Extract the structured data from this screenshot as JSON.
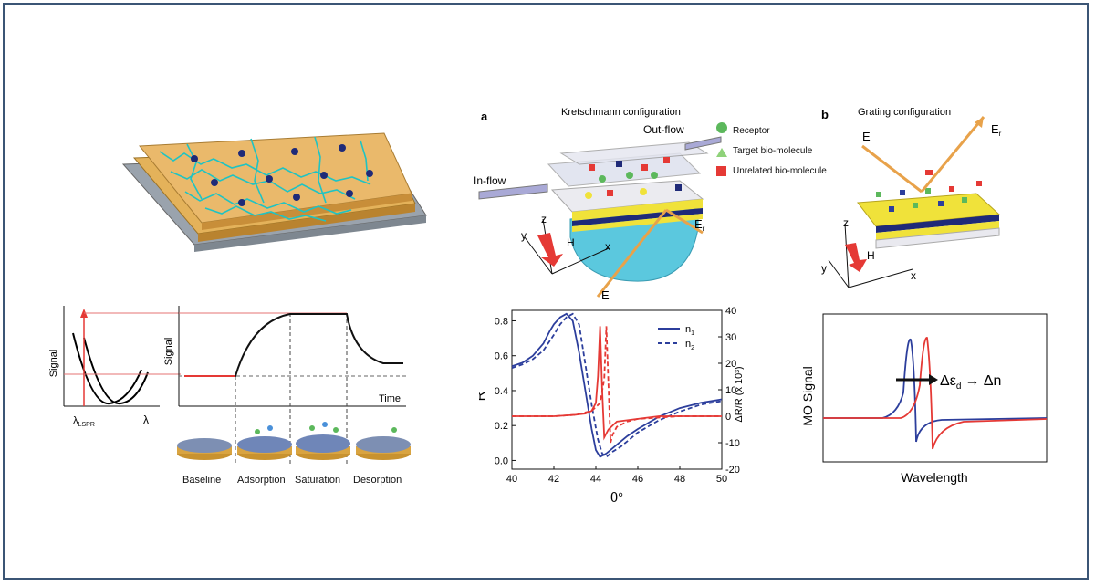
{
  "colors": {
    "frame": "#3b5575",
    "gold": "#d9a441",
    "red": "#e53935",
    "blue": "#2c3e9c",
    "prism": "#5bc8de",
    "yellow": "#f0e23a",
    "navy": "#1f2a78"
  },
  "lspr": {
    "signal_left": "Signal",
    "lambda_lspr": "λ",
    "lambda_sub": "LSPR",
    "lambda_axis": "λ",
    "signal_mid": "Signal",
    "time": "Time",
    "stages": [
      "Baseline",
      "Adsorption",
      "Saturation",
      "Desorption"
    ]
  },
  "kretschmann": {
    "panel": "a",
    "title": "Kretschmann configuration",
    "outflow": "Out-flow",
    "inflow": "In-flow",
    "legend": [
      "Receptor",
      "Target bio-molecule",
      "Unrelated bio-molecule"
    ],
    "ax_z": "z",
    "ax_y": "y",
    "ax_x": "x",
    "h": "H",
    "er": "E",
    "er_sub": "r",
    "ei": "E",
    "ei_sub": "i"
  },
  "grating": {
    "panel": "b",
    "title": "Grating configuration",
    "ei": "E",
    "ei_sub": "i",
    "er": "E",
    "er_sub": "r",
    "ax_z": "z",
    "ax_y": "y",
    "ax_x": "x",
    "h": "H"
  },
  "mo": {
    "ylabel": "MO Signal",
    "xlabel": "Wavelength",
    "annot": "Δε",
    "annot_sub": "d",
    "annot_tail": "→ Δn"
  },
  "chart_data": [
    {
      "type": "line",
      "xlabel": "θ°",
      "ylabel": "R",
      "ylabel_right": "ΔR/R (x 10³)",
      "xlim": [
        40,
        50
      ],
      "ylim": [
        -0.05,
        0.86
      ],
      "ylim_right": [
        -20,
        40
      ],
      "xticks": [
        40,
        42,
        44,
        46,
        48,
        50
      ],
      "yticks": [
        0.0,
        0.2,
        0.4,
        0.6,
        0.8
      ],
      "yticks_right": [
        -20,
        -10,
        0,
        10,
        20,
        30,
        40
      ],
      "legend": [
        "n",
        "n"
      ],
      "legend_sub": [
        "1",
        "2"
      ],
      "series": [
        {
          "name": "n1",
          "style": "solid",
          "color": "#2c3e9c",
          "x": [
            40,
            40.5,
            41,
            41.5,
            41.8,
            42,
            42.3,
            42.6,
            42.9,
            43.2,
            43.5,
            43.8,
            44.0,
            44.2,
            44.5,
            45,
            45.5,
            46,
            47,
            48,
            49,
            50
          ],
          "y": [
            0.54,
            0.56,
            0.6,
            0.67,
            0.74,
            0.78,
            0.82,
            0.84,
            0.8,
            0.62,
            0.4,
            0.18,
            0.06,
            0.02,
            0.04,
            0.09,
            0.14,
            0.18,
            0.25,
            0.3,
            0.33,
            0.35
          ]
        },
        {
          "name": "n2",
          "style": "dashed",
          "color": "#2c3e9c",
          "x": [
            40,
            40.5,
            41,
            41.5,
            42,
            42.3,
            42.6,
            42.9,
            43.2,
            43.5,
            43.8,
            44.1,
            44.3,
            44.5,
            44.8,
            45.2,
            45.6,
            46,
            47,
            48,
            49,
            50
          ],
          "y": [
            0.53,
            0.55,
            0.58,
            0.63,
            0.72,
            0.78,
            0.82,
            0.84,
            0.78,
            0.55,
            0.32,
            0.12,
            0.04,
            0.02,
            0.05,
            0.08,
            0.12,
            0.16,
            0.23,
            0.28,
            0.32,
            0.34
          ]
        },
        {
          "name": "ΔR/R n1",
          "style": "solid",
          "color": "#e53935",
          "axis": "right",
          "x": [
            40,
            42,
            43,
            43.5,
            43.8,
            44.0,
            44.1,
            44.2,
            44.3,
            44.4,
            44.6,
            45,
            46,
            47,
            48,
            50
          ],
          "y": [
            0,
            0,
            0.5,
            1,
            2,
            5,
            15,
            34,
            10,
            -8,
            -5,
            -2,
            -1,
            0,
            0,
            0
          ]
        },
        {
          "name": "ΔR/R n2",
          "style": "dashed",
          "color": "#e53935",
          "axis": "right",
          "x": [
            40,
            42,
            43,
            43.8,
            44.2,
            44.4,
            44.5,
            44.6,
            44.7,
            44.8,
            45,
            45.5,
            46,
            48,
            50
          ],
          "y": [
            0,
            0,
            0.5,
            2,
            5,
            14,
            34,
            12,
            -10,
            -7,
            -4,
            -2,
            -1,
            0,
            0
          ]
        }
      ]
    }
  ]
}
